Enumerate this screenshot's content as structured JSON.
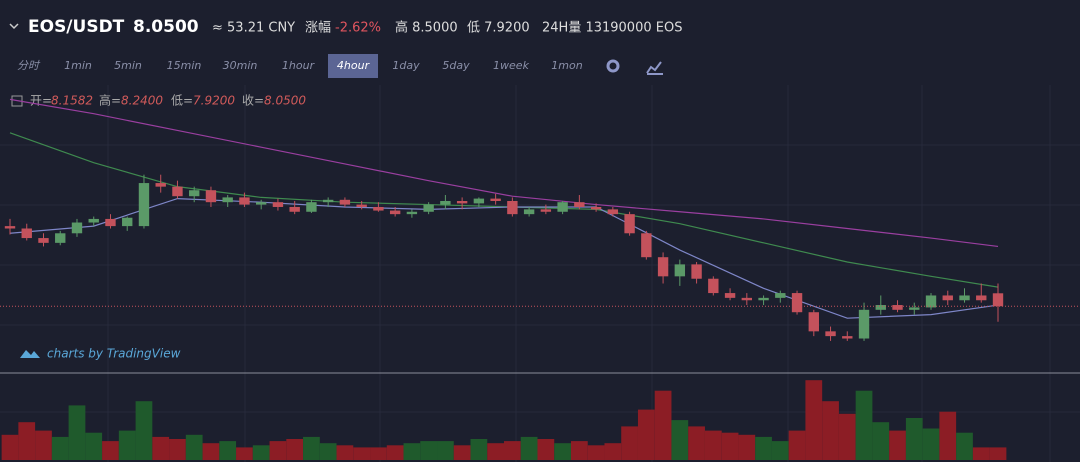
{
  "header": {
    "pair": "EOS/USDT",
    "price": "8.0500",
    "cny": "≈ 53.21 CNY",
    "change_label": "涨幅",
    "change": "-2.62%",
    "high": "高 8.5000",
    "low": "低 7.9200",
    "volume_24h": "24H量 13190000 EOS"
  },
  "toolbar": {
    "intervals": [
      "分时",
      "1min",
      "5min",
      "15min",
      "30min",
      "1hour",
      "4hour",
      "1day",
      "5day",
      "1week",
      "1mon"
    ],
    "active": "4hour"
  },
  "legend": {
    "open_label": "开=",
    "open": "8.1582",
    "high_label": "高=",
    "high": "8.2400",
    "low_label": "低=",
    "low": "7.9200",
    "close_label": "收=",
    "close": "8.0500"
  },
  "watermark": "charts by TradingView",
  "chart_data": {
    "type": "candlestick",
    "up_color": "#5b9a68",
    "down_color": "#c4525c",
    "volume_up_color": "#1f5a2c",
    "volume_down_color": "#8c1d25",
    "ylim": [
      7.5,
      9.9
    ],
    "volume_lim": [
      0,
      400000
    ],
    "open": [
      8.72,
      8.7,
      8.62,
      8.58,
      8.66,
      8.75,
      8.78,
      8.72,
      8.72,
      9.08,
      9.05,
      8.97,
      9.02,
      8.92,
      8.96,
      8.9,
      8.92,
      8.88,
      8.84,
      8.92,
      8.94,
      8.9,
      8.88,
      8.85,
      8.82,
      8.84,
      8.9,
      8.93,
      8.91,
      8.95,
      8.93,
      8.82,
      8.86,
      8.84,
      8.92,
      8.88,
      8.86,
      8.82,
      8.66,
      8.46,
      8.3,
      8.4,
      8.28,
      8.16,
      8.12,
      8.1,
      8.12,
      8.16,
      8.0,
      7.84,
      7.8,
      7.78,
      8.02,
      8.06,
      8.02,
      8.04,
      8.14,
      8.1,
      8.14,
      8.1582
    ],
    "high": [
      8.78,
      8.74,
      8.66,
      8.68,
      8.78,
      8.8,
      8.82,
      8.8,
      9.15,
      9.15,
      9.1,
      9.05,
      9.05,
      8.98,
      9.0,
      8.94,
      8.95,
      8.93,
      8.94,
      8.96,
      8.96,
      8.93,
      8.92,
      8.88,
      8.86,
      8.92,
      8.98,
      8.96,
      8.96,
      8.99,
      8.96,
      8.88,
      8.9,
      8.93,
      8.98,
      8.91,
      8.88,
      8.84,
      8.68,
      8.5,
      8.44,
      8.42,
      8.3,
      8.2,
      8.16,
      8.14,
      8.18,
      8.18,
      8.02,
      7.88,
      7.84,
      8.08,
      8.14,
      8.1,
      8.08,
      8.16,
      8.18,
      8.2,
      8.24,
      8.24
    ],
    "low": [
      8.65,
      8.6,
      8.55,
      8.56,
      8.63,
      8.72,
      8.7,
      8.68,
      8.7,
      9.0,
      8.95,
      8.92,
      8.88,
      8.88,
      8.88,
      8.86,
      8.85,
      8.82,
      8.83,
      8.88,
      8.88,
      8.86,
      8.84,
      8.8,
      8.79,
      8.82,
      8.86,
      8.86,
      8.88,
      8.9,
      8.8,
      8.8,
      8.82,
      8.82,
      8.86,
      8.84,
      8.8,
      8.64,
      8.44,
      8.24,
      8.22,
      8.24,
      8.14,
      8.1,
      8.06,
      8.06,
      8.08,
      7.98,
      7.8,
      7.76,
      7.76,
      7.76,
      7.98,
      8.0,
      7.98,
      8.02,
      8.06,
      8.08,
      8.08,
      7.92
    ],
    "close": [
      8.7,
      8.62,
      8.58,
      8.66,
      8.75,
      8.78,
      8.72,
      8.79,
      9.08,
      9.05,
      8.97,
      9.02,
      8.92,
      8.96,
      8.9,
      8.92,
      8.88,
      8.84,
      8.92,
      8.94,
      8.9,
      8.88,
      8.85,
      8.82,
      8.84,
      8.9,
      8.93,
      8.91,
      8.95,
      8.93,
      8.82,
      8.86,
      8.84,
      8.92,
      8.88,
      8.86,
      8.82,
      8.66,
      8.46,
      8.3,
      8.4,
      8.28,
      8.16,
      8.12,
      8.1,
      8.12,
      8.16,
      8.0,
      7.84,
      7.8,
      7.78,
      8.02,
      8.06,
      8.02,
      8.04,
      8.14,
      8.1,
      8.14,
      8.1,
      8.05
    ],
    "volume": [
      120000,
      180000,
      140000,
      110000,
      260000,
      130000,
      90000,
      140000,
      280000,
      110000,
      100000,
      120000,
      80000,
      90000,
      60000,
      70000,
      90000,
      100000,
      110000,
      80000,
      70000,
      60000,
      60000,
      70000,
      80000,
      90000,
      90000,
      70000,
      100000,
      80000,
      90000,
      110000,
      100000,
      80000,
      90000,
      70000,
      80000,
      160000,
      240000,
      330000,
      190000,
      160000,
      140000,
      130000,
      120000,
      110000,
      90000,
      140000,
      380000,
      280000,
      220000,
      330000,
      180000,
      140000,
      200000,
      150000,
      230000,
      130000,
      60000,
      60000
    ],
    "ma": [
      {
        "color": "#9a3fa0",
        "x": [
          0,
          5,
          10,
          15,
          20,
          25,
          30,
          35,
          40,
          45,
          50,
          55,
          59
        ],
        "values": [
          9.78,
          9.66,
          9.52,
          9.38,
          9.24,
          9.1,
          8.97,
          8.9,
          8.84,
          8.78,
          8.7,
          8.62,
          8.55
        ]
      },
      {
        "color": "#3f8a4f",
        "x": [
          0,
          5,
          10,
          15,
          20,
          25,
          30,
          35,
          40,
          45,
          50,
          55,
          59
        ],
        "values": [
          9.5,
          9.25,
          9.05,
          8.96,
          8.92,
          8.9,
          8.88,
          8.86,
          8.74,
          8.58,
          8.42,
          8.3,
          8.21
        ]
      },
      {
        "color": "#7e86c8",
        "x": [
          0,
          5,
          10,
          15,
          20,
          25,
          30,
          35,
          40,
          45,
          50,
          55,
          59
        ],
        "values": [
          8.66,
          8.72,
          8.95,
          8.92,
          8.88,
          8.86,
          8.88,
          8.88,
          8.52,
          8.2,
          7.95,
          7.98,
          8.06
        ]
      }
    ]
  }
}
